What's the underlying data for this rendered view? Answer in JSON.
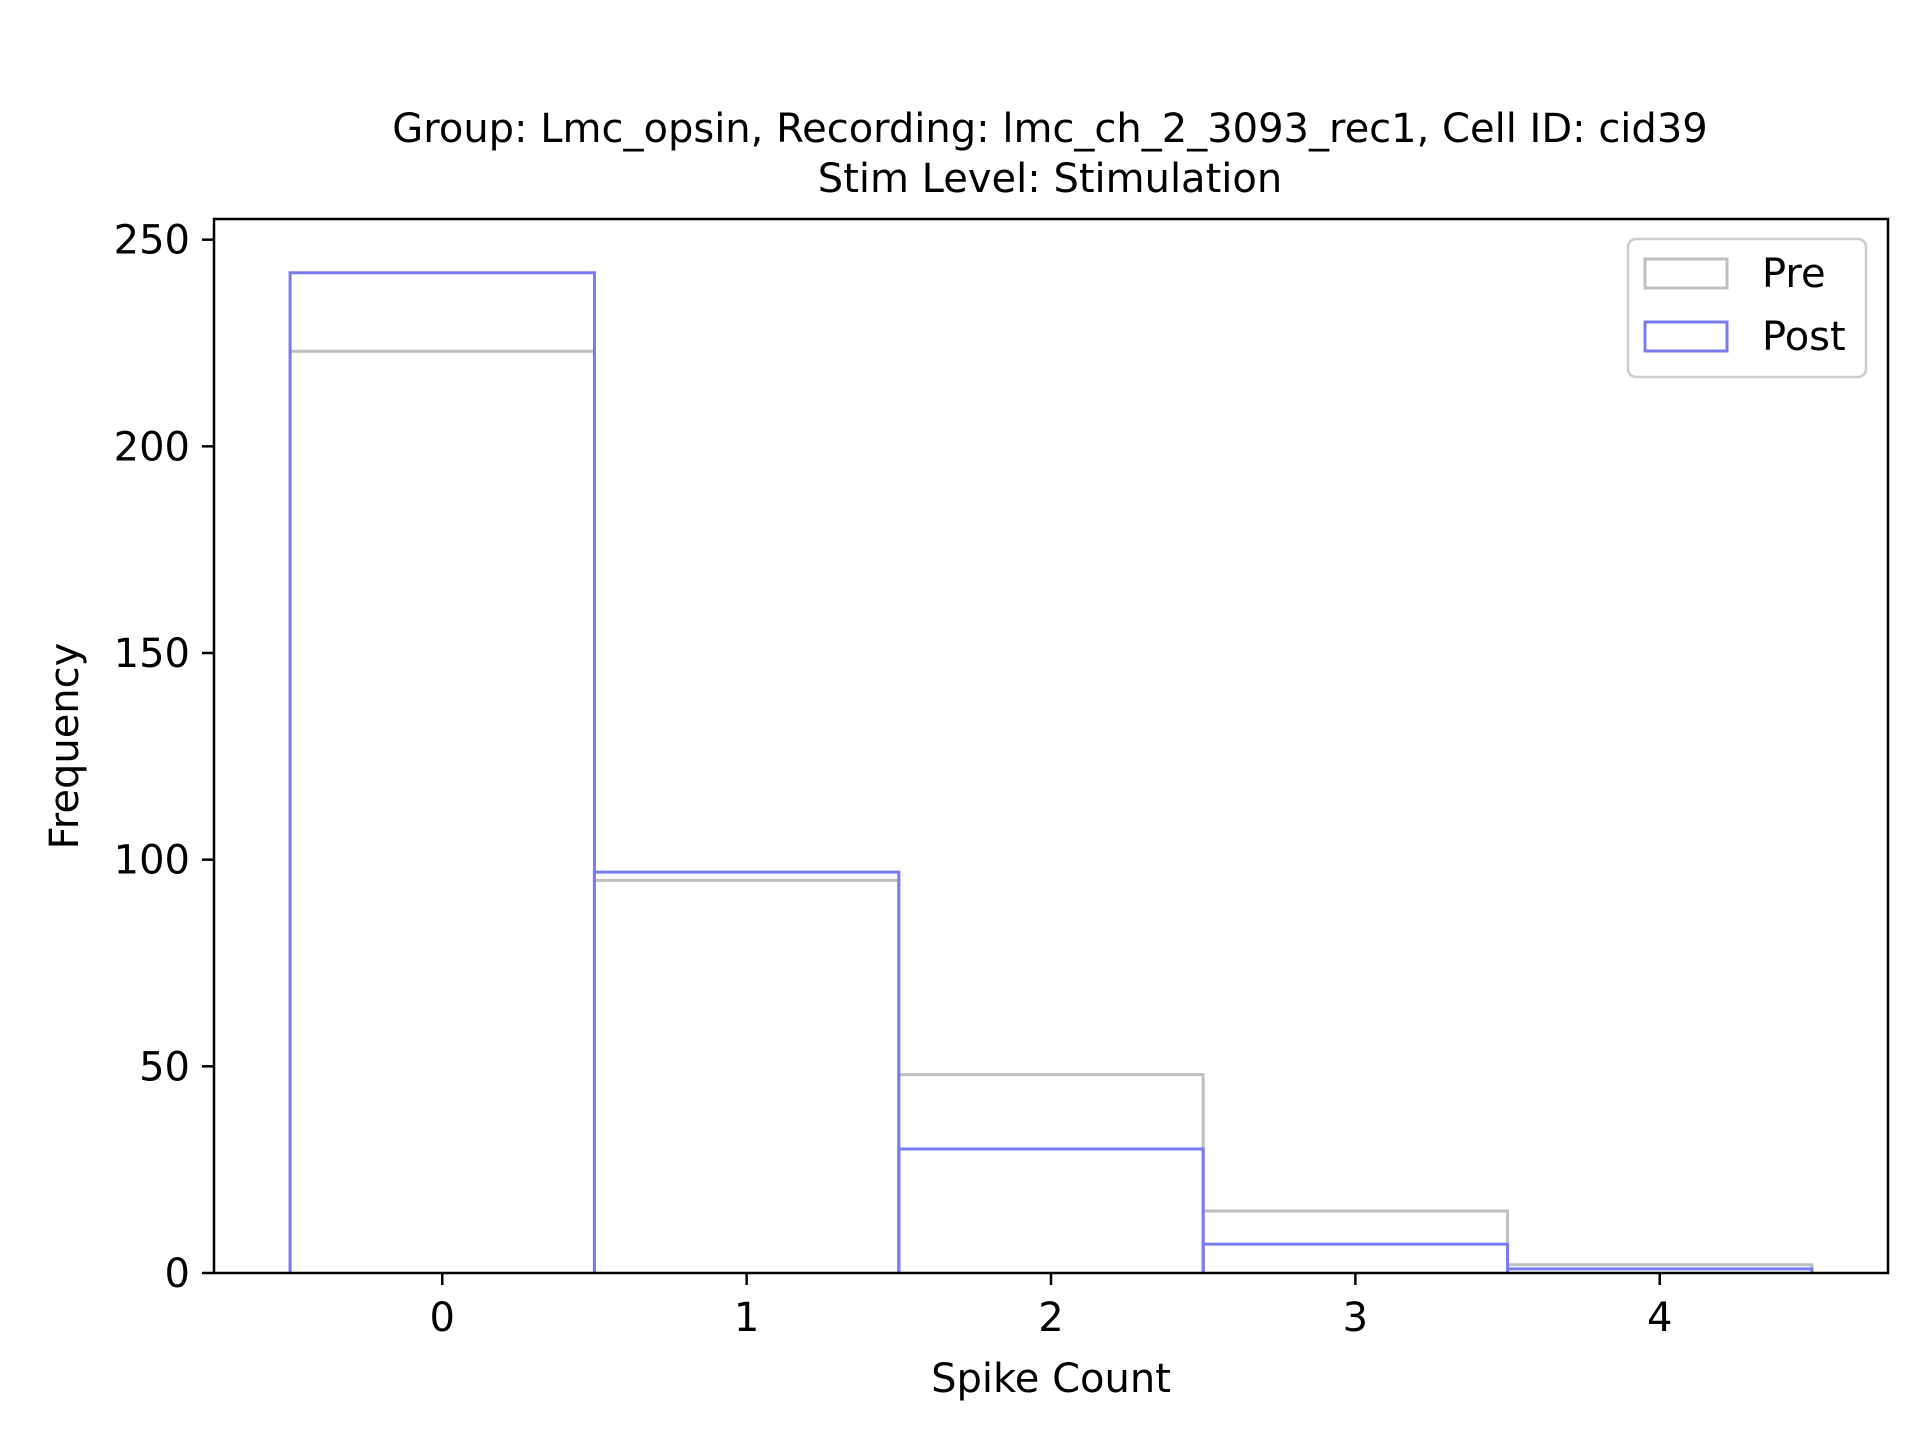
{
  "chart_data": {
    "type": "bar",
    "subtype": "step-histogram",
    "title_line1": "Group: Lmc_opsin, Recording: lmc_ch_2_3093_rec1, Cell ID: cid39",
    "title_line2": "Stim Level: Stimulation",
    "xlabel": "Spike Count",
    "ylabel": "Frequency",
    "xlim": [
      -0.75,
      4.75
    ],
    "ylim": [
      0,
      255
    ],
    "x_ticks": [
      0,
      1,
      2,
      3,
      4
    ],
    "x_tick_labels": [
      "0",
      "1",
      "2",
      "3",
      "4"
    ],
    "y_ticks": [
      0,
      50,
      100,
      150,
      200,
      250
    ],
    "y_tick_labels": [
      "0",
      "50",
      "100",
      "150",
      "200",
      "250"
    ],
    "bin_edges": [
      -0.5,
      0.5,
      1.5,
      2.5,
      3.5,
      4.5
    ],
    "grid": false,
    "legend_position": "top-right",
    "series": [
      {
        "name": "Pre",
        "color": "#bfbfbf",
        "values": [
          223,
          95,
          48,
          15,
          2
        ]
      },
      {
        "name": "Post",
        "color": "#7b7bf0",
        "values": [
          242,
          97,
          30,
          7,
          1
        ]
      }
    ]
  }
}
